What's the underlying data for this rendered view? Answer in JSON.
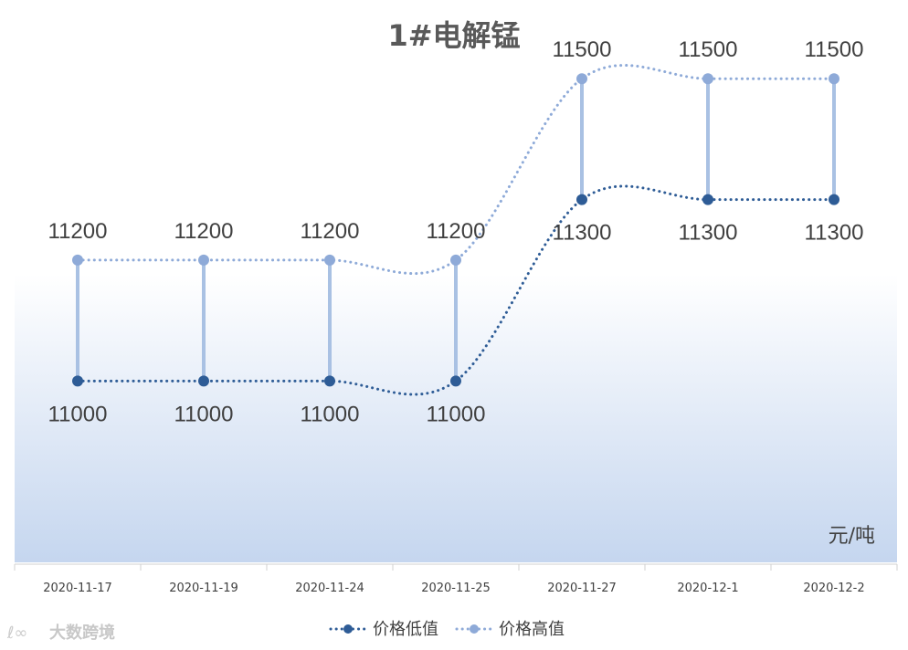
{
  "chart_data": {
    "type": "line",
    "title": "1#电解锰",
    "unit": "元/吨",
    "categories": [
      "2020-11-17",
      "2020-11-19",
      "2020-11-24",
      "2020-11-25",
      "2020-11-27",
      "2020-12-1",
      "2020-12-2"
    ],
    "series": [
      {
        "name": "价格低值",
        "values": [
          11000,
          11000,
          11000,
          11000,
          11300,
          11300,
          11300
        ],
        "color": "#2e5c96"
      },
      {
        "name": "价格高值",
        "values": [
          11200,
          11200,
          11200,
          11200,
          11500,
          11500,
          11500
        ],
        "color": "#8eaad8"
      }
    ],
    "ylim": [
      10700,
      11600
    ],
    "legend": "bottom",
    "grid": false,
    "high_low_lines": true,
    "smooth": true
  },
  "watermark": "大数跨境"
}
